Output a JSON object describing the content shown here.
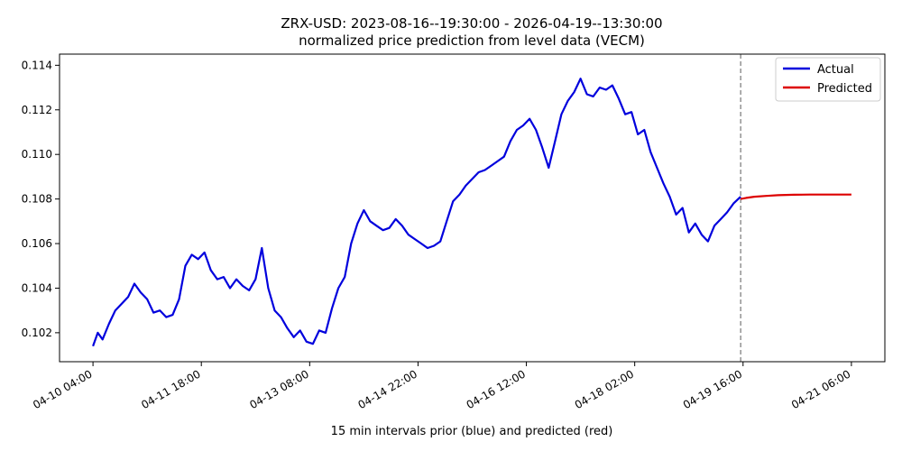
{
  "chart_data": {
    "type": "line",
    "title": "ZRX-USD: 2023-08-16--19:30:00 - 2026-04-19--13:30:00",
    "subtitle": "normalized price prediction from level data (VECM)",
    "xlabel": "15 min intervals prior (blue) and predicted (red)",
    "ylabel": "",
    "ylim": [
      0.1007,
      0.1145
    ],
    "y_ticks": [
      0.102,
      0.104,
      0.106,
      0.108,
      0.11,
      0.112,
      0.114
    ],
    "y_tick_labels": [
      "0.102",
      "0.104",
      "0.106",
      "0.108",
      "0.110",
      "0.112",
      "0.114"
    ],
    "x_ticks": [
      0,
      136,
      272,
      408,
      544,
      680,
      816,
      952
    ],
    "x_tick_labels": [
      "04-10 04:00",
      "04-11 18:00",
      "04-13 08:00",
      "04-14 22:00",
      "04-16 12:00",
      "04-18 02:00",
      "04-19 16:00",
      "04-21 06:00"
    ],
    "xlim": [
      -42,
      994
    ],
    "forecast_start_index": 813,
    "grid": false,
    "legend_position": "top-right",
    "series": [
      {
        "name": "Actual",
        "color": "#0000dd",
        "x": [
          0,
          6,
          12,
          20,
          28,
          36,
          44,
          52,
          60,
          68,
          76,
          84,
          92,
          100,
          108,
          116,
          124,
          132,
          140,
          148,
          156,
          164,
          172,
          180,
          188,
          196,
          204,
          212,
          220,
          228,
          236,
          244,
          252,
          260,
          268,
          276,
          284,
          292,
          300,
          308,
          316,
          324,
          332,
          340,
          348,
          356,
          364,
          372,
          380,
          388,
          396,
          404,
          412,
          420,
          428,
          436,
          444,
          452,
          460,
          468,
          476,
          484,
          492,
          500,
          508,
          516,
          524,
          532,
          540,
          548,
          556,
          564,
          572,
          580,
          588,
          596,
          604,
          612,
          620,
          628,
          636,
          644,
          652,
          660,
          668,
          676,
          684,
          692,
          700,
          708,
          716,
          724,
          732,
          740,
          748,
          756,
          764,
          772,
          780,
          788,
          796,
          804,
          813
        ],
        "values": [
          0.1014,
          0.102,
          0.1017,
          0.1024,
          0.103,
          0.1033,
          0.1036,
          0.1042,
          0.1038,
          0.1035,
          0.1029,
          0.103,
          0.1027,
          0.1028,
          0.1035,
          0.105,
          0.1055,
          0.1053,
          0.1056,
          0.1048,
          0.1044,
          0.1045,
          0.104,
          0.1044,
          0.1041,
          0.1039,
          0.1044,
          0.1058,
          0.104,
          0.103,
          0.1027,
          0.1022,
          0.1018,
          0.1021,
          0.1016,
          0.1015,
          0.1021,
          0.102,
          0.1031,
          0.104,
          0.1045,
          0.106,
          0.1069,
          0.1075,
          0.107,
          0.1068,
          0.1066,
          0.1067,
          0.1071,
          0.1068,
          0.1064,
          0.1062,
          0.106,
          0.1058,
          0.1059,
          0.1061,
          0.107,
          0.1079,
          0.1082,
          0.1086,
          0.1089,
          0.1092,
          0.1093,
          0.1095,
          0.1097,
          0.1099,
          0.1106,
          0.1111,
          0.1113,
          0.1116,
          0.1111,
          0.1103,
          0.1094,
          0.1106,
          0.1118,
          0.1124,
          0.1128,
          0.1134,
          0.1127,
          0.1126,
          0.113,
          0.1129,
          0.1131,
          0.1125,
          0.1118,
          0.1119,
          0.1109,
          0.1111,
          0.1101,
          0.1094,
          0.1087,
          0.1081,
          0.1073,
          0.1076,
          0.1065,
          0.1069,
          0.1064,
          0.1061,
          0.1068,
          0.1071,
          0.1074,
          0.1078,
          0.1081
        ]
      },
      {
        "name": "Predicted",
        "color": "#dd0000",
        "x": [
          813,
          820,
          830,
          845,
          860,
          880,
          900,
          925,
          952
        ],
        "values": [
          0.108,
          0.10805,
          0.1081,
          0.10814,
          0.10817,
          0.10819,
          0.1082,
          0.1082,
          0.1082
        ]
      }
    ]
  }
}
